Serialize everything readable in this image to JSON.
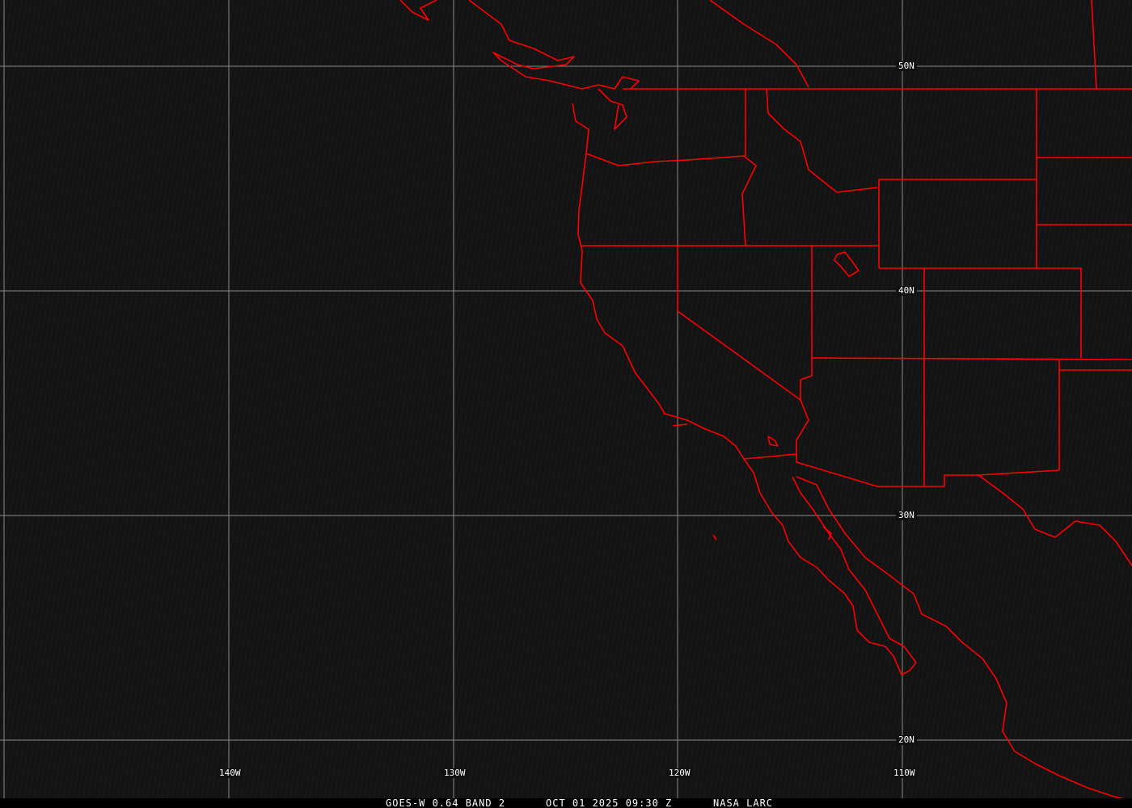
{
  "map": {
    "caption": {
      "satellite": "GOES-W 0.64 BAND 2",
      "datetime": "OCT 01 2025 09:30 Z",
      "source": "NASA LARC"
    },
    "lat_labels": [
      "50N",
      "40N",
      "30N",
      "20N"
    ],
    "lon_labels": [
      "140W",
      "130W",
      "120W",
      "110W"
    ],
    "colors": {
      "boundaries": "#ff0000",
      "grid": "#8a8a8a",
      "background": "#141414"
    }
  }
}
